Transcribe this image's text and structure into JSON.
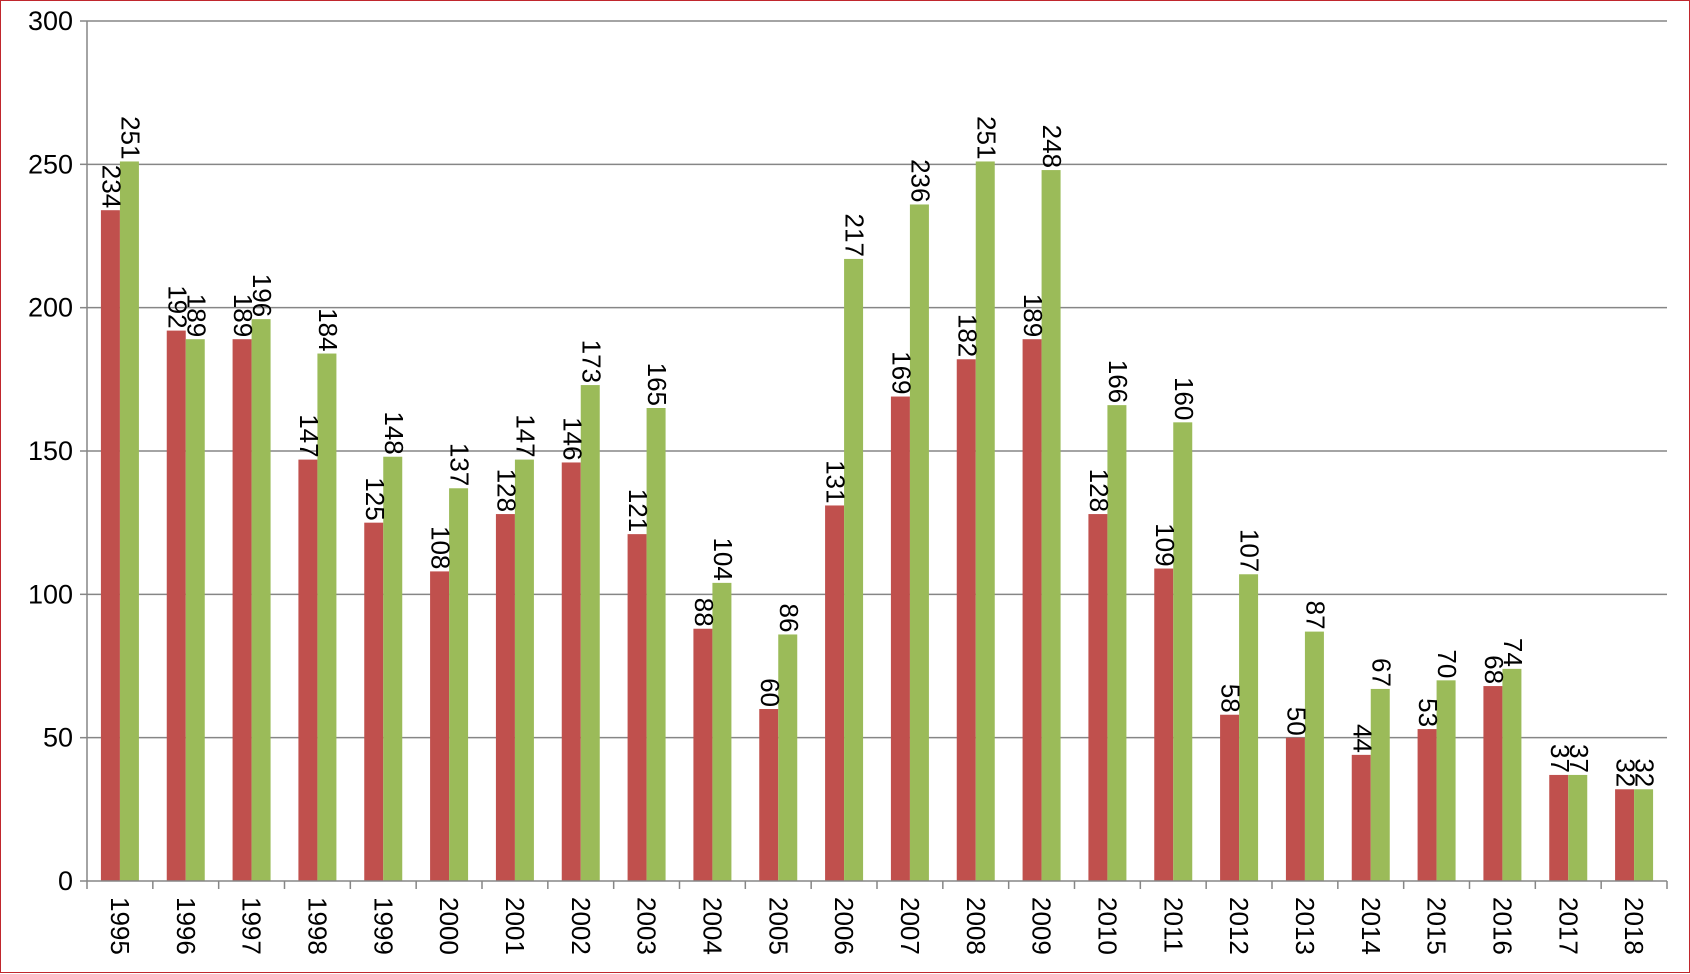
{
  "chart_data": {
    "type": "bar",
    "title": "",
    "xlabel": "",
    "ylabel": "",
    "ylim": [
      0,
      300
    ],
    "yticks": [
      0,
      50,
      100,
      150,
      200,
      250,
      300
    ],
    "grid": true,
    "legend": "none",
    "data_labels": "rotated",
    "x_tick_labels": "rotated",
    "categories": [
      "1995",
      "1996",
      "1997",
      "1998",
      "1999",
      "2000",
      "2001",
      "2002",
      "2003",
      "2004",
      "2005",
      "2006",
      "2007",
      "2008",
      "2009",
      "2010",
      "2011",
      "2012",
      "2013",
      "2014",
      "2015",
      "2016",
      "2017",
      "2018"
    ],
    "series": [
      {
        "color": "#c0504d",
        "values": [
          234,
          192,
          189,
          147,
          125,
          108,
          128,
          146,
          121,
          88,
          60,
          131,
          169,
          182,
          189,
          128,
          109,
          58,
          50,
          44,
          53,
          68,
          37,
          32
        ]
      },
      {
        "color": "#9bbb59",
        "values": [
          251,
          189,
          196,
          184,
          148,
          137,
          147,
          173,
          165,
          104,
          86,
          217,
          236,
          251,
          248,
          166,
          160,
          107,
          87,
          67,
          70,
          74,
          37,
          32
        ]
      }
    ]
  },
  "colors": {
    "border": "#c0272d",
    "grid": "#868686",
    "axis": "#868686"
  }
}
